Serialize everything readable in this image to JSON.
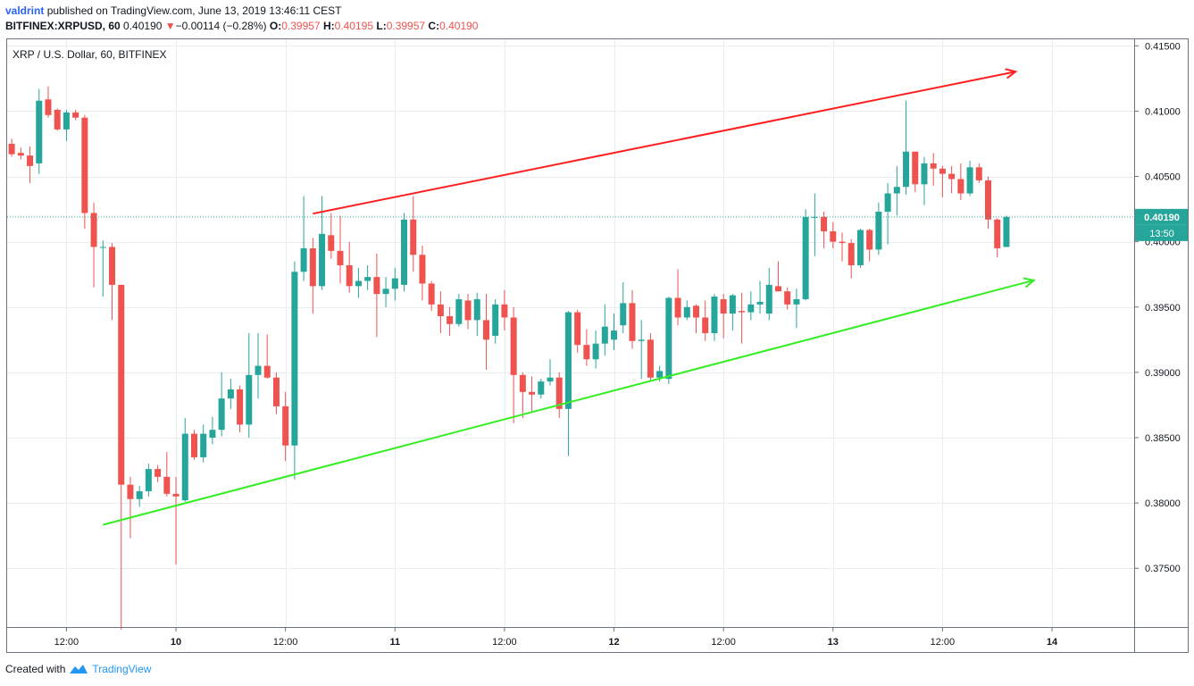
{
  "header": {
    "user": "valdrint",
    "published_text": "published on TradingView.com, June 13, 2019 13:46:11 CEST",
    "symbol": "BITFINEX:XRPUSD, 60",
    "last": "0.40190",
    "change": "−0.00114 (−0.28%)",
    "o_label": "O:",
    "o_value": "0.39957",
    "h_label": "H:",
    "h_value": "0.40195",
    "l_label": "L:",
    "l_value": "0.39957",
    "c_label": "C:",
    "c_value": "0.40190"
  },
  "footer": {
    "created_with": "Created with",
    "brand": "TradingView"
  },
  "colors": {
    "up": "#26a69a",
    "down": "#ef5350",
    "resistance": "#ff1f1f",
    "support": "#33ee22",
    "price_line": "#26a69a",
    "grid": "#e8edf2"
  },
  "chart_data": {
    "type": "candlestick",
    "title": "XRP / U.S. Dollar, 60, BITFINEX",
    "ylim": [
      0.3705,
      0.4155
    ],
    "y_ticks": [
      "0.41500",
      "0.41000",
      "0.40500",
      "0.40000",
      "0.39500",
      "0.39000",
      "0.38500",
      "0.38000",
      "0.37500"
    ],
    "y_tick_values": [
      0.415,
      0.41,
      0.405,
      0.4,
      0.395,
      0.39,
      0.385,
      0.38,
      0.375
    ],
    "x_ticks": [
      "12:00",
      "10",
      "12:00",
      "11",
      "12:00",
      "12",
      "12:00",
      "13",
      "12:00",
      "14"
    ],
    "x_tick_index": [
      6,
      18,
      30,
      42,
      54,
      66,
      78,
      90,
      102,
      114
    ],
    "x_range": [
      -0.5,
      123
    ],
    "current_price": "0.40190",
    "countdown": "13:50",
    "candles": [
      {
        "o": 0.4075,
        "h": 0.4079,
        "l": 0.4065,
        "c": 0.4067
      },
      {
        "o": 0.4068,
        "h": 0.4072,
        "l": 0.4063,
        "c": 0.4066
      },
      {
        "o": 0.4066,
        "h": 0.4073,
        "l": 0.4045,
        "c": 0.4058
      },
      {
        "o": 0.406,
        "h": 0.4117,
        "l": 0.4052,
        "c": 0.4108
      },
      {
        "o": 0.4109,
        "h": 0.4119,
        "l": 0.4095,
        "c": 0.4097
      },
      {
        "o": 0.4101,
        "h": 0.4102,
        "l": 0.4085,
        "c": 0.4086
      },
      {
        "o": 0.4086,
        "h": 0.4101,
        "l": 0.4077,
        "c": 0.4099
      },
      {
        "o": 0.4099,
        "h": 0.4101,
        "l": 0.4093,
        "c": 0.4095
      },
      {
        "o": 0.4095,
        "h": 0.4097,
        "l": 0.401,
        "c": 0.4022
      },
      {
        "o": 0.4022,
        "h": 0.403,
        "l": 0.3965,
        "c": 0.3996
      },
      {
        "o": 0.3996,
        "h": 0.4001,
        "l": 0.3958,
        "c": 0.3996
      },
      {
        "o": 0.3996,
        "h": 0.3999,
        "l": 0.394,
        "c": 0.3967
      },
      {
        "o": 0.3967,
        "h": 0.3967,
        "l": 0.3703,
        "c": 0.3814
      },
      {
        "o": 0.3814,
        "h": 0.382,
        "l": 0.3773,
        "c": 0.3803
      },
      {
        "o": 0.3803,
        "h": 0.3813,
        "l": 0.3797,
        "c": 0.3809
      },
      {
        "o": 0.3809,
        "h": 0.383,
        "l": 0.3805,
        "c": 0.3826
      },
      {
        "o": 0.3826,
        "h": 0.3829,
        "l": 0.3816,
        "c": 0.382
      },
      {
        "o": 0.382,
        "h": 0.3839,
        "l": 0.3805,
        "c": 0.3807
      },
      {
        "o": 0.3807,
        "h": 0.382,
        "l": 0.3753,
        "c": 0.3805
      },
      {
        "o": 0.3802,
        "h": 0.3865,
        "l": 0.3801,
        "c": 0.3853
      },
      {
        "o": 0.3853,
        "h": 0.3856,
        "l": 0.3833,
        "c": 0.3835
      },
      {
        "o": 0.3835,
        "h": 0.386,
        "l": 0.3831,
        "c": 0.3853
      },
      {
        "o": 0.385,
        "h": 0.3866,
        "l": 0.3845,
        "c": 0.3856
      },
      {
        "o": 0.3856,
        "h": 0.39,
        "l": 0.3851,
        "c": 0.388
      },
      {
        "o": 0.388,
        "h": 0.3895,
        "l": 0.3872,
        "c": 0.3887
      },
      {
        "o": 0.3887,
        "h": 0.389,
        "l": 0.3854,
        "c": 0.386
      },
      {
        "o": 0.386,
        "h": 0.393,
        "l": 0.385,
        "c": 0.3898
      },
      {
        "o": 0.3898,
        "h": 0.393,
        "l": 0.388,
        "c": 0.3905
      },
      {
        "o": 0.3905,
        "h": 0.3929,
        "l": 0.3895,
        "c": 0.3896
      },
      {
        "o": 0.3896,
        "h": 0.39,
        "l": 0.3868,
        "c": 0.3874
      },
      {
        "o": 0.3874,
        "h": 0.3885,
        "l": 0.3832,
        "c": 0.3844
      },
      {
        "o": 0.3844,
        "h": 0.3985,
        "l": 0.3818,
        "c": 0.3977
      },
      {
        "o": 0.3977,
        "h": 0.4035,
        "l": 0.397,
        "c": 0.3995
      },
      {
        "o": 0.3995,
        "h": 0.4003,
        "l": 0.3945,
        "c": 0.3966
      },
      {
        "o": 0.3966,
        "h": 0.4035,
        "l": 0.3963,
        "c": 0.4006
      },
      {
        "o": 0.4005,
        "h": 0.4022,
        "l": 0.3987,
        "c": 0.3993
      },
      {
        "o": 0.3993,
        "h": 0.402,
        "l": 0.3968,
        "c": 0.3982
      },
      {
        "o": 0.3982,
        "h": 0.4,
        "l": 0.3961,
        "c": 0.3966
      },
      {
        "o": 0.3966,
        "h": 0.398,
        "l": 0.3957,
        "c": 0.397
      },
      {
        "o": 0.397,
        "h": 0.3982,
        "l": 0.3963,
        "c": 0.3973
      },
      {
        "o": 0.3973,
        "h": 0.3991,
        "l": 0.3927,
        "c": 0.396
      },
      {
        "o": 0.396,
        "h": 0.3973,
        "l": 0.395,
        "c": 0.3964
      },
      {
        "o": 0.3964,
        "h": 0.398,
        "l": 0.3955,
        "c": 0.3972
      },
      {
        "o": 0.3967,
        "h": 0.4022,
        "l": 0.3962,
        "c": 0.4017
      },
      {
        "o": 0.4017,
        "h": 0.4035,
        "l": 0.3977,
        "c": 0.399
      },
      {
        "o": 0.399,
        "h": 0.3997,
        "l": 0.3955,
        "c": 0.3968
      },
      {
        "o": 0.3968,
        "h": 0.397,
        "l": 0.3947,
        "c": 0.3952
      },
      {
        "o": 0.3952,
        "h": 0.3962,
        "l": 0.393,
        "c": 0.3943
      },
      {
        "o": 0.3943,
        "h": 0.395,
        "l": 0.3928,
        "c": 0.3937
      },
      {
        "o": 0.3937,
        "h": 0.396,
        "l": 0.3935,
        "c": 0.3956
      },
      {
        "o": 0.3955,
        "h": 0.396,
        "l": 0.3933,
        "c": 0.394
      },
      {
        "o": 0.394,
        "h": 0.3961,
        "l": 0.3928,
        "c": 0.3956
      },
      {
        "o": 0.394,
        "h": 0.396,
        "l": 0.3902,
        "c": 0.3925
      },
      {
        "o": 0.3928,
        "h": 0.3956,
        "l": 0.3922,
        "c": 0.3952
      },
      {
        "o": 0.3952,
        "h": 0.3963,
        "l": 0.3932,
        "c": 0.3942
      },
      {
        "o": 0.3942,
        "h": 0.395,
        "l": 0.3861,
        "c": 0.3898
      },
      {
        "o": 0.3898,
        "h": 0.39,
        "l": 0.3865,
        "c": 0.3885
      },
      {
        "o": 0.3885,
        "h": 0.3897,
        "l": 0.387,
        "c": 0.3883
      },
      {
        "o": 0.3883,
        "h": 0.3895,
        "l": 0.388,
        "c": 0.3893
      },
      {
        "o": 0.3893,
        "h": 0.391,
        "l": 0.389,
        "c": 0.3896
      },
      {
        "o": 0.3896,
        "h": 0.39,
        "l": 0.3865,
        "c": 0.3872
      },
      {
        "o": 0.3872,
        "h": 0.3947,
        "l": 0.3836,
        "c": 0.3946
      },
      {
        "o": 0.3946,
        "h": 0.3948,
        "l": 0.3915,
        "c": 0.3921
      },
      {
        "o": 0.3921,
        "h": 0.3933,
        "l": 0.3905,
        "c": 0.391
      },
      {
        "o": 0.391,
        "h": 0.3932,
        "l": 0.3903,
        "c": 0.3922
      },
      {
        "o": 0.3922,
        "h": 0.3952,
        "l": 0.3913,
        "c": 0.3935
      },
      {
        "o": 0.3925,
        "h": 0.3945,
        "l": 0.3917,
        "c": 0.3932
      },
      {
        "o": 0.3936,
        "h": 0.3969,
        "l": 0.393,
        "c": 0.3953
      },
      {
        "o": 0.3953,
        "h": 0.3963,
        "l": 0.3918,
        "c": 0.3924
      },
      {
        "o": 0.3924,
        "h": 0.394,
        "l": 0.3895,
        "c": 0.3925
      },
      {
        "o": 0.3925,
        "h": 0.393,
        "l": 0.3893,
        "c": 0.3896
      },
      {
        "o": 0.3896,
        "h": 0.3905,
        "l": 0.3893,
        "c": 0.3901
      },
      {
        "o": 0.3895,
        "h": 0.3958,
        "l": 0.3891,
        "c": 0.3957
      },
      {
        "o": 0.3957,
        "h": 0.3979,
        "l": 0.3936,
        "c": 0.3942
      },
      {
        "o": 0.3942,
        "h": 0.3955,
        "l": 0.394,
        "c": 0.395
      },
      {
        "o": 0.3951,
        "h": 0.3952,
        "l": 0.393,
        "c": 0.3942
      },
      {
        "o": 0.3942,
        "h": 0.3955,
        "l": 0.3924,
        "c": 0.393
      },
      {
        "o": 0.393,
        "h": 0.396,
        "l": 0.3924,
        "c": 0.3958
      },
      {
        "o": 0.3956,
        "h": 0.396,
        "l": 0.3926,
        "c": 0.3945
      },
      {
        "o": 0.3945,
        "h": 0.396,
        "l": 0.3932,
        "c": 0.3959
      },
      {
        "o": 0.3947,
        "h": 0.3961,
        "l": 0.3922,
        "c": 0.3946
      },
      {
        "o": 0.3946,
        "h": 0.3962,
        "l": 0.394,
        "c": 0.3952
      },
      {
        "o": 0.3952,
        "h": 0.397,
        "l": 0.3945,
        "c": 0.3954
      },
      {
        "o": 0.3945,
        "h": 0.398,
        "l": 0.394,
        "c": 0.3967
      },
      {
        "o": 0.3966,
        "h": 0.3985,
        "l": 0.3962,
        "c": 0.3962
      },
      {
        "o": 0.3962,
        "h": 0.3965,
        "l": 0.3948,
        "c": 0.3952
      },
      {
        "o": 0.3952,
        "h": 0.3964,
        "l": 0.3934,
        "c": 0.3956
      },
      {
        "o": 0.3956,
        "h": 0.4025,
        "l": 0.3955,
        "c": 0.4019
      },
      {
        "o": 0.4019,
        "h": 0.4037,
        "l": 0.3989,
        "c": 0.4019
      },
      {
        "o": 0.4019,
        "h": 0.4023,
        "l": 0.3995,
        "c": 0.4008
      },
      {
        "o": 0.4008,
        "h": 0.4015,
        "l": 0.3995,
        "c": 0.4
      },
      {
        "o": 0.4,
        "h": 0.4007,
        "l": 0.3985,
        "c": 0.3999
      },
      {
        "o": 0.3999,
        "h": 0.4002,
        "l": 0.3972,
        "c": 0.3982
      },
      {
        "o": 0.3982,
        "h": 0.401,
        "l": 0.398,
        "c": 0.4009
      },
      {
        "o": 0.4009,
        "h": 0.401,
        "l": 0.3985,
        "c": 0.3994
      },
      {
        "o": 0.3994,
        "h": 0.403,
        "l": 0.399,
        "c": 0.4023
      },
      {
        "o": 0.4023,
        "h": 0.4045,
        "l": 0.3998,
        "c": 0.4037
      },
      {
        "o": 0.4037,
        "h": 0.4058,
        "l": 0.402,
        "c": 0.4042
      },
      {
        "o": 0.4042,
        "h": 0.4108,
        "l": 0.4036,
        "c": 0.4069
      },
      {
        "o": 0.4069,
        "h": 0.4068,
        "l": 0.4038,
        "c": 0.4044
      },
      {
        "o": 0.4044,
        "h": 0.4065,
        "l": 0.4028,
        "c": 0.406
      },
      {
        "o": 0.406,
        "h": 0.4068,
        "l": 0.4043,
        "c": 0.4056
      },
      {
        "o": 0.4056,
        "h": 0.4058,
        "l": 0.4034,
        "c": 0.4052
      },
      {
        "o": 0.4052,
        "h": 0.4058,
        "l": 0.4037,
        "c": 0.4048
      },
      {
        "o": 0.4048,
        "h": 0.406,
        "l": 0.4032,
        "c": 0.4037
      },
      {
        "o": 0.4037,
        "h": 0.4062,
        "l": 0.4035,
        "c": 0.4057
      },
      {
        "o": 0.4057,
        "h": 0.406,
        "l": 0.4045,
        "c": 0.4047
      },
      {
        "o": 0.4047,
        "h": 0.405,
        "l": 0.401,
        "c": 0.4017
      },
      {
        "o": 0.4017,
        "h": 0.4018,
        "l": 0.3988,
        "c": 0.3995
      },
      {
        "o": 0.3996,
        "h": 0.402,
        "l": 0.3996,
        "c": 0.4019
      }
    ],
    "trendlines": [
      {
        "name": "resistance",
        "color": "#ff1f1f",
        "x0": 33,
        "y0": 0.40215,
        "x1": 110,
        "y1": 0.41302,
        "arrow": true
      },
      {
        "name": "support",
        "color": "#33ee22",
        "x0": 10,
        "y0": 0.37833,
        "x1": 112,
        "y1": 0.39705,
        "arrow": true
      }
    ]
  }
}
